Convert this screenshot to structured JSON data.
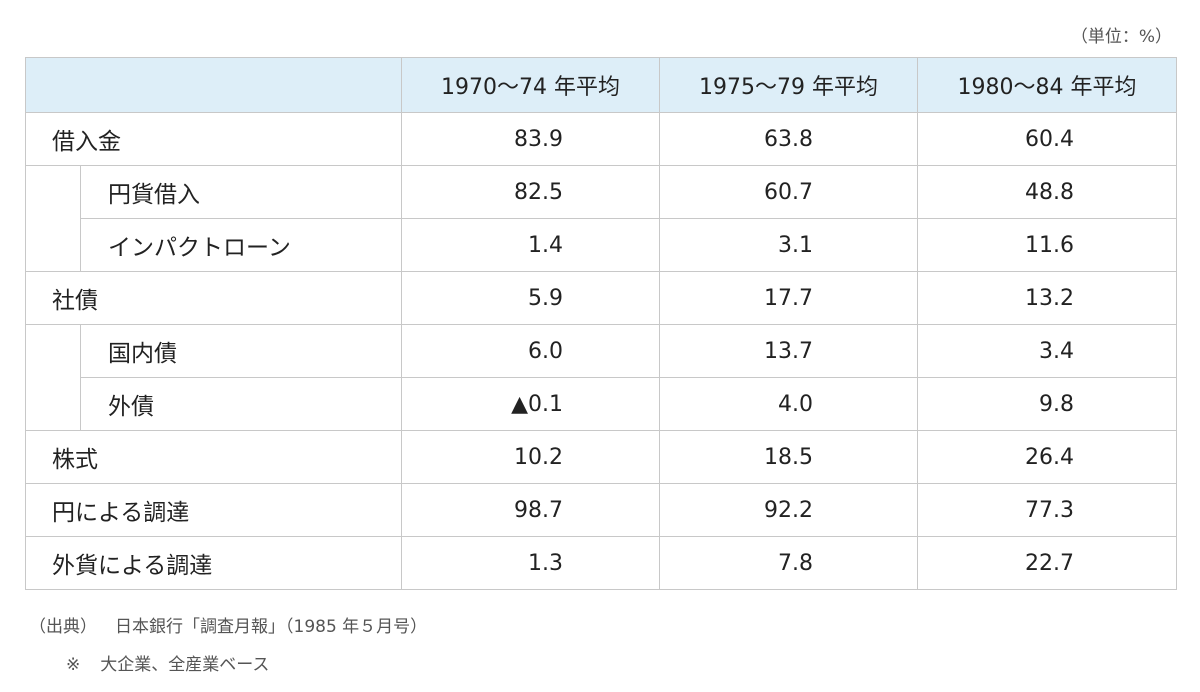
{
  "unit": "（単位：%）",
  "columns": [
    "",
    "1970〜74 年平均",
    "1975〜79 年平均",
    "1980〜84 年平均"
  ],
  "rows": [
    {
      "label": "借入金",
      "indent": 0,
      "values": [
        "83.9",
        "63.8",
        "60.4"
      ]
    },
    {
      "label": "円貨借入",
      "indent": 1,
      "values": [
        "82.5",
        "60.7",
        "48.8"
      ]
    },
    {
      "label": "インパクトローン",
      "indent": 1,
      "values": [
        "1.4",
        "3.1",
        "11.6"
      ]
    },
    {
      "label": "社債",
      "indent": 0,
      "values": [
        "5.9",
        "17.7",
        "13.2"
      ]
    },
    {
      "label": "国内債",
      "indent": 1,
      "values": [
        "6.0",
        "13.7",
        "3.4"
      ]
    },
    {
      "label": "外債",
      "indent": 1,
      "values": [
        "0.1",
        "4.0",
        "9.8"
      ],
      "negative_marker": "▲"
    },
    {
      "label": "株式",
      "indent": 0,
      "values": [
        "10.2",
        "18.5",
        "26.4"
      ]
    },
    {
      "label": "円による調達",
      "indent": 0,
      "values": [
        "98.7",
        "92.2",
        "77.3"
      ]
    },
    {
      "label": "外貨による調達",
      "indent": 0,
      "values": [
        "1.3",
        "7.8",
        "22.7"
      ]
    }
  ],
  "source": {
    "label": "（出典）",
    "text": "日本銀行「調査月報」（1985 年５月号）"
  },
  "note": {
    "mark": "※",
    "text": "大企業、全産業ベース"
  },
  "colors": {
    "header_bg": "#ddeef8",
    "border": "#c8c8c8"
  }
}
